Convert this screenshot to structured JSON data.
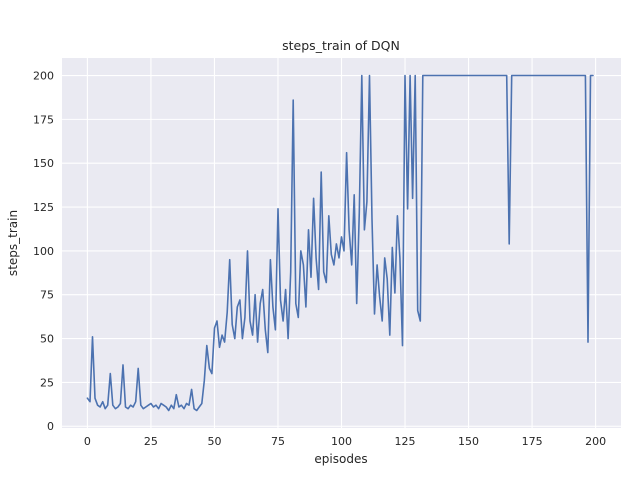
{
  "chart_data": {
    "type": "line",
    "title": "steps_train of DQN",
    "xlabel": "episodes",
    "ylabel": "steps_train",
    "xlim": [
      -10,
      210
    ],
    "ylim": [
      -1,
      210
    ],
    "xticks": [
      0,
      25,
      50,
      75,
      100,
      125,
      150,
      175,
      200
    ],
    "yticks": [
      0,
      25,
      50,
      75,
      100,
      125,
      150,
      175,
      200
    ],
    "x_range": [
      0,
      199
    ],
    "grid": true,
    "legend": "none",
    "colors": {
      "line": "#4c72b0",
      "plot_background": "#eaeaf2",
      "gridline": "#ffffff",
      "figure_background": "#ffffff",
      "text": "#262626"
    },
    "series": [
      {
        "name": "steps_train",
        "values": [
          16,
          14,
          51,
          16,
          12,
          11,
          14,
          10,
          12,
          30,
          12,
          10,
          11,
          13,
          35,
          11,
          10,
          12,
          11,
          14,
          33,
          12,
          10,
          11,
          12,
          13,
          11,
          12,
          10,
          13,
          12,
          11,
          9,
          12,
          10,
          18,
          11,
          12,
          10,
          13,
          12,
          21,
          10,
          9,
          11,
          13,
          26,
          46,
          33,
          30,
          56,
          60,
          45,
          52,
          48,
          65,
          95,
          58,
          50,
          68,
          72,
          50,
          62,
          100,
          60,
          52,
          75,
          48,
          70,
          78,
          55,
          42,
          95,
          68,
          55,
          124,
          72,
          60,
          78,
          50,
          88,
          186,
          70,
          62,
          100,
          92,
          68,
          112,
          85,
          130,
          96,
          78,
          145,
          88,
          82,
          120,
          98,
          92,
          104,
          96,
          108,
          100,
          156,
          112,
          92,
          132,
          70,
          122,
          200,
          112,
          128,
          200,
          118,
          64,
          92,
          74,
          60,
          96,
          84,
          52,
          102,
          76,
          120,
          96,
          46,
          200,
          124,
          200,
          130,
          200,
          66,
          60,
          200,
          200,
          200,
          200,
          200,
          200,
          200,
          200,
          200,
          200,
          200,
          200,
          200,
          200,
          200,
          200,
          200,
          200,
          200,
          200,
          200,
          200,
          200,
          200,
          200,
          200,
          200,
          200,
          200,
          200,
          200,
          200,
          200,
          200,
          104,
          200,
          200,
          200,
          200,
          200,
          200,
          200,
          200,
          200,
          200,
          200,
          200,
          200,
          200,
          200,
          200,
          200,
          200,
          200,
          200,
          200,
          200,
          200,
          200,
          200,
          200,
          200,
          200,
          200,
          200,
          48,
          200,
          200
        ]
      }
    ]
  }
}
